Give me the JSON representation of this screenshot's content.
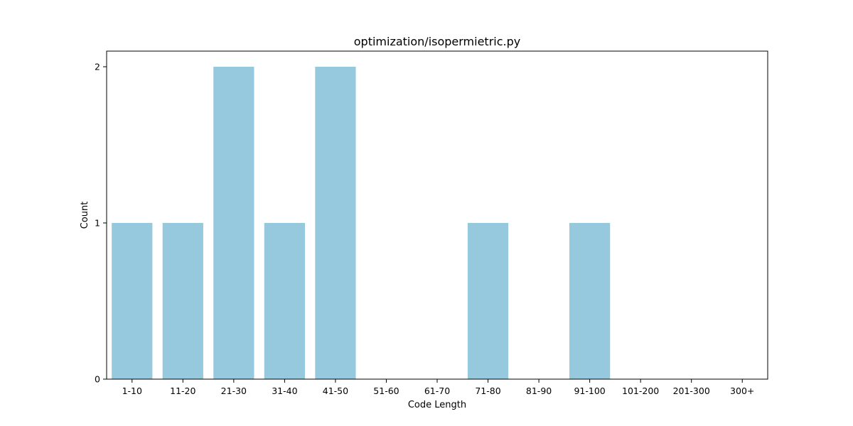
{
  "chart_data": {
    "type": "bar",
    "title": "optimization/isopermietric.py",
    "xlabel": "Code Length",
    "ylabel": "Count",
    "categories": [
      "1-10",
      "11-20",
      "21-30",
      "31-40",
      "41-50",
      "51-60",
      "61-70",
      "71-80",
      "81-90",
      "91-100",
      "101-200",
      "201-300",
      "300+"
    ],
    "values": [
      1,
      1,
      2,
      1,
      2,
      0,
      0,
      1,
      0,
      1,
      0,
      0,
      0
    ],
    "ylim": [
      0,
      2.1
    ],
    "yticks": [
      0,
      1,
      2
    ],
    "grid": false,
    "legend": "none",
    "bar_color": "#96c9de"
  }
}
